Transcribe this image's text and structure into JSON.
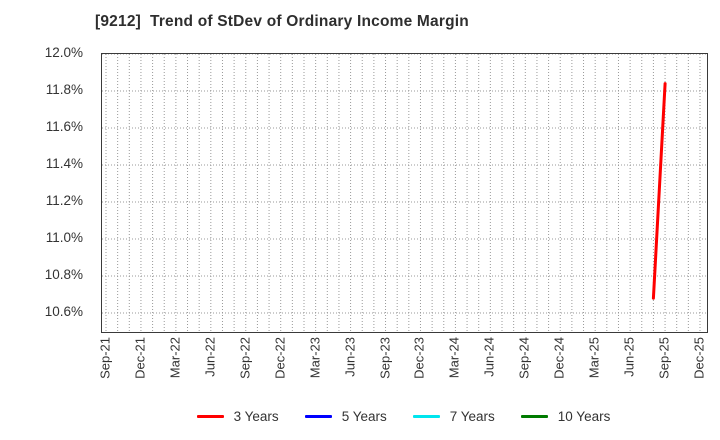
{
  "window": {
    "title": "[9212]  Trend of StDev of Ordinary Income Margin"
  },
  "chart_data": {
    "type": "line",
    "title": "[9212]  Trend of StDev of Ordinary Income Margin",
    "x_axis": {
      "start_month": "Sep-21",
      "end_month": "Dec-25",
      "total_months": 52,
      "tick_every_months": 3,
      "tick_labels": [
        "Sep-21",
        "Dec-21",
        "Mar-22",
        "Jun-22",
        "Sep-22",
        "Dec-22",
        "Mar-23",
        "Jun-23",
        "Sep-23",
        "Dec-23",
        "Mar-24",
        "Jun-24",
        "Sep-24",
        "Dec-24",
        "Mar-25",
        "Jun-25",
        "Sep-25",
        "Dec-25"
      ]
    },
    "y_axis": {
      "tick_labels": [
        "12.0%",
        "11.8%",
        "11.6%",
        "11.4%",
        "11.2%",
        "11.0%",
        "10.8%",
        "10.6%"
      ],
      "tick_values": [
        12.0,
        11.8,
        11.6,
        11.4,
        11.2,
        11.0,
        10.8,
        10.6
      ],
      "ylim": [
        10.497,
        12.0
      ],
      "unit": "%"
    },
    "grid": {
      "style": "dotted",
      "color": "#999999",
      "vertical": "monthly",
      "horizontal": "every 0.2%"
    },
    "series": [
      {
        "name": "3 Years",
        "color": "#ff0000",
        "points": [
          {
            "month": "Aug-25",
            "value": 10.68
          },
          {
            "month": "Sep-25",
            "value": 11.84
          }
        ]
      },
      {
        "name": "5 Years",
        "color": "#0000ff",
        "points": []
      },
      {
        "name": "7 Years",
        "color": "#00e5ee",
        "points": []
      },
      {
        "name": "10 Years",
        "color": "#007b00",
        "points": []
      }
    ],
    "legend": {
      "position": "bottom",
      "entries": [
        {
          "label": "3 Years",
          "color": "#ff0000"
        },
        {
          "label": "5 Years",
          "color": "#0000ff"
        },
        {
          "label": "7 Years",
          "color": "#00e5ee"
        },
        {
          "label": "10 Years",
          "color": "#007b00"
        }
      ]
    }
  }
}
